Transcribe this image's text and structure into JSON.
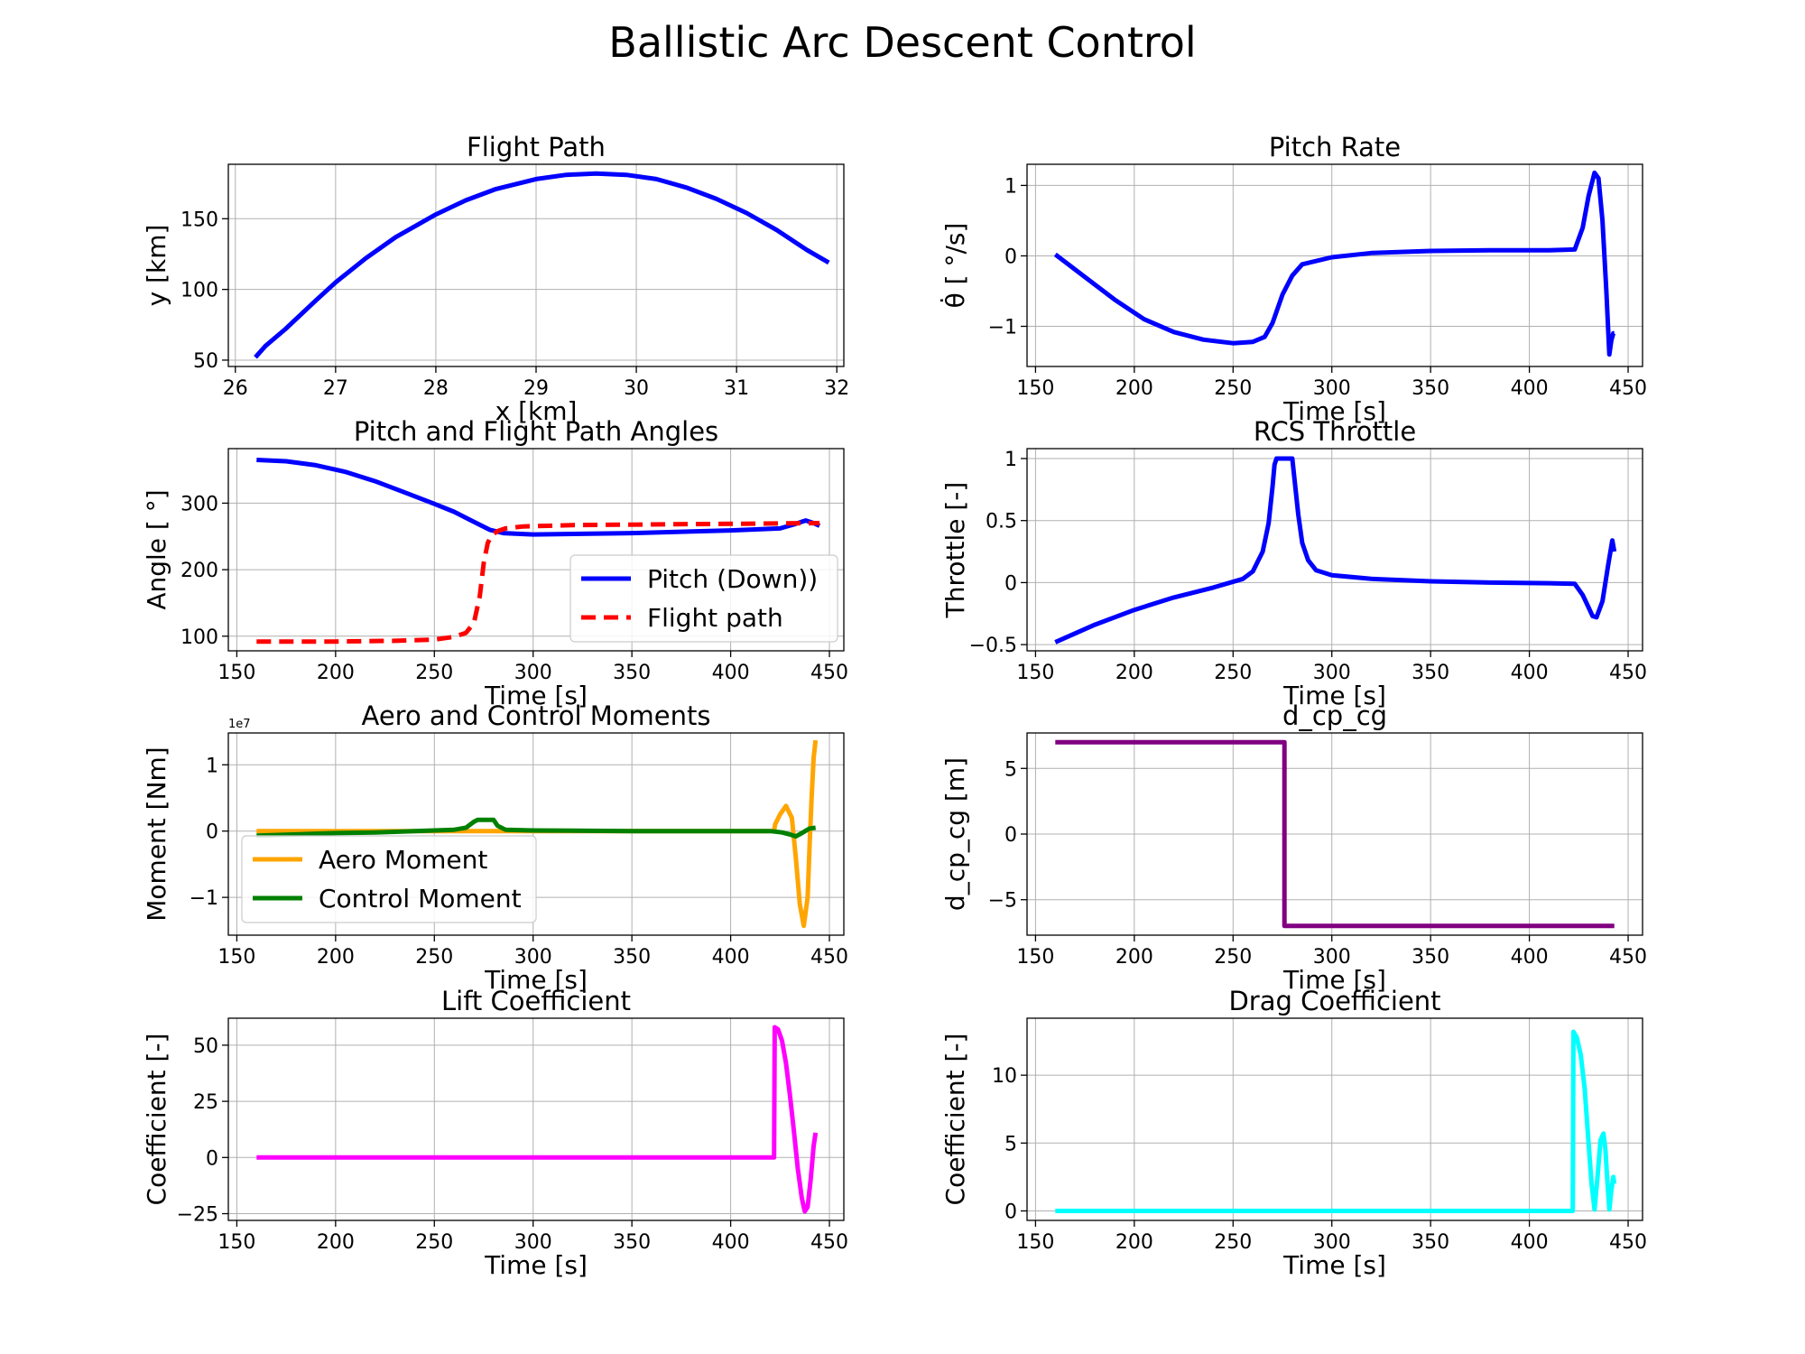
{
  "figure": {
    "title": "Ballistic Arc Descent Control"
  },
  "chart_data": [
    {
      "type": "line",
      "title": "Flight Path",
      "xlabel": "x [km]",
      "ylabel": "y [km]",
      "xlim": [
        25.93,
        32.07
      ],
      "ylim": [
        45.5,
        188.5
      ],
      "xticks": [
        26,
        27,
        28,
        29,
        30,
        31,
        32
      ],
      "yticks": [
        50,
        100,
        150
      ],
      "grid": true,
      "series": [
        {
          "color": "#0000ff",
          "width": 5,
          "dash": "",
          "x": [
            26.2,
            26.3,
            26.5,
            26.8,
            27.0,
            27.3,
            27.6,
            28.0,
            28.3,
            28.6,
            29.0,
            29.3,
            29.6,
            29.9,
            30.2,
            30.5,
            30.8,
            31.1,
            31.4,
            31.7,
            31.92
          ],
          "y": [
            52,
            60,
            72,
            92,
            105,
            122,
            137,
            153,
            163,
            171,
            178,
            181,
            182,
            181,
            178,
            172,
            164,
            154,
            142,
            128,
            119
          ]
        }
      ]
    },
    {
      "type": "line",
      "title": "Pitch Rate",
      "xlabel": "Time [s]",
      "ylabel": "θ̇ [ °/s]",
      "xlim": [
        145.7,
        457.3
      ],
      "ylim": [
        -1.57,
        1.3
      ],
      "xticks": [
        150,
        200,
        250,
        300,
        350,
        400,
        450
      ],
      "yticks": [
        -1,
        0,
        1
      ],
      "grid": true,
      "series": [
        {
          "color": "#0000ff",
          "width": 5,
          "dash": "",
          "x": [
            160,
            175,
            190,
            205,
            220,
            235,
            250,
            260,
            266,
            270,
            275,
            280,
            285,
            300,
            320,
            350,
            380,
            410,
            423,
            427,
            430,
            433,
            435,
            437,
            439,
            440.5,
            441.5,
            442.5,
            443
          ],
          "y": [
            0.02,
            -0.3,
            -0.62,
            -0.9,
            -1.08,
            -1.19,
            -1.24,
            -1.22,
            -1.15,
            -0.95,
            -0.55,
            -0.28,
            -0.12,
            -0.02,
            0.04,
            0.07,
            0.08,
            0.08,
            0.09,
            0.4,
            0.85,
            1.18,
            1.1,
            0.5,
            -0.5,
            -1.4,
            -1.2,
            -1.1,
            -1.1
          ]
        }
      ]
    },
    {
      "type": "line",
      "title": "Pitch and Flight Path Angles",
      "xlabel": "Time [s]",
      "ylabel": "Angle [ °]",
      "xlim": [
        145.7,
        457.3
      ],
      "ylim": [
        78,
        382
      ],
      "xticks": [
        150,
        200,
        250,
        300,
        350,
        400,
        450
      ],
      "yticks": [
        100,
        200,
        300
      ],
      "grid": true,
      "legend": "lower right",
      "series": [
        {
          "name": "Pitch (Down))",
          "color": "#0000ff",
          "width": 5,
          "dash": "",
          "x": [
            160,
            175,
            190,
            205,
            220,
            235,
            250,
            260,
            270,
            278,
            285,
            300,
            350,
            400,
            425,
            432,
            438,
            442,
            445
          ],
          "y": [
            365,
            363,
            357,
            347,
            333,
            316,
            299,
            287,
            272,
            260,
            255,
            253,
            255,
            259,
            262,
            268,
            274,
            270,
            266
          ]
        },
        {
          "name": "Flight path",
          "color": "#ff0000",
          "width": 5,
          "dash": "16 9",
          "x": [
            160,
            200,
            230,
            250,
            260,
            266,
            270,
            273,
            275,
            277,
            279,
            282,
            286,
            295,
            320,
            400,
            445
          ],
          "y": [
            92,
            92,
            93,
            95,
            99,
            105,
            120,
            160,
            210,
            240,
            252,
            258,
            262,
            265,
            267,
            269,
            270
          ]
        }
      ]
    },
    {
      "type": "line",
      "title": "RCS Throttle",
      "xlabel": "Time [s]",
      "ylabel": "Throttle [-]",
      "xlim": [
        145.7,
        457.3
      ],
      "ylim": [
        -0.55,
        1.08
      ],
      "xticks": [
        150,
        200,
        250,
        300,
        350,
        400,
        450
      ],
      "yticks": [
        -0.5,
        0.0,
        0.5,
        1.0
      ],
      "grid": true,
      "series": [
        {
          "color": "#0000ff",
          "width": 5,
          "dash": "",
          "x": [
            160,
            180,
            200,
            220,
            240,
            255,
            260,
            265,
            268,
            270,
            271,
            272,
            280,
            281,
            283,
            285,
            288,
            292,
            300,
            320,
            350,
            380,
            410,
            423,
            427,
            430,
            432,
            434,
            437,
            440,
            442,
            443
          ],
          "y": [
            -0.48,
            -0.34,
            -0.22,
            -0.12,
            -0.04,
            0.03,
            0.09,
            0.25,
            0.48,
            0.78,
            0.95,
            1.0,
            1.0,
            0.85,
            0.55,
            0.32,
            0.18,
            0.1,
            0.06,
            0.03,
            0.01,
            0.0,
            -0.005,
            -0.01,
            -0.1,
            -0.2,
            -0.27,
            -0.28,
            -0.15,
            0.15,
            0.34,
            0.25
          ]
        }
      ]
    },
    {
      "type": "line",
      "title": "Aero and Control Moments",
      "xlabel": "Time [s]",
      "ylabel": "Moment [Nm]",
      "offset_text": "1e7",
      "xlim": [
        145.7,
        457.3
      ],
      "ylim": [
        -1.57,
        1.48
      ],
      "xticks": [
        150,
        200,
        250,
        300,
        350,
        400,
        450
      ],
      "yticks": [
        -1,
        0,
        1
      ],
      "grid": true,
      "legend": "lower left",
      "series": [
        {
          "name": "Aero Moment",
          "color": "#ffa500",
          "width": 5,
          "dash": "",
          "x": [
            160,
            200,
            250,
            300,
            350,
            400,
            422,
            422.5,
            425,
            428,
            431,
            433,
            435,
            437,
            439,
            440,
            441,
            442,
            443
          ],
          "y": [
            0.0,
            0.0,
            0.0,
            0.0,
            0.0,
            0.0,
            0.0,
            0.1,
            0.25,
            0.38,
            0.2,
            -0.4,
            -1.1,
            -1.43,
            -1.0,
            -0.2,
            0.5,
            1.1,
            1.37
          ]
        },
        {
          "name": "Control Moment",
          "color": "#008000",
          "width": 5,
          "dash": "",
          "x": [
            160,
            180,
            200,
            220,
            240,
            260,
            266,
            270,
            272,
            280,
            282,
            286,
            300,
            350,
            400,
            420,
            426,
            430,
            433,
            436,
            440,
            443
          ],
          "y": [
            -0.07,
            -0.05,
            -0.03,
            -0.02,
            0.0,
            0.02,
            0.05,
            0.14,
            0.17,
            0.17,
            0.08,
            0.02,
            0.01,
            0.0,
            0.0,
            0.0,
            -0.02,
            -0.05,
            -0.08,
            -0.03,
            0.04,
            0.05
          ]
        }
      ]
    },
    {
      "type": "line",
      "title": "d_cp_cg",
      "xlabel": "Time [s]",
      "ylabel": "d_cp_cg [m]",
      "xlim": [
        145.7,
        457.3
      ],
      "ylim": [
        -7.7,
        7.7
      ],
      "xticks": [
        150,
        200,
        250,
        300,
        350,
        400,
        450
      ],
      "yticks": [
        -5,
        0,
        5
      ],
      "grid": true,
      "series": [
        {
          "color": "#800080",
          "width": 5,
          "dash": "",
          "x": [
            160,
            276,
            276,
            443
          ],
          "y": [
            7,
            7,
            -7,
            -7
          ]
        }
      ]
    },
    {
      "type": "line",
      "title": "Lift Coefficient",
      "xlabel": "Time [s]",
      "ylabel": "Coefficient [-]",
      "xlim": [
        145.7,
        457.3
      ],
      "ylim": [
        -28,
        62
      ],
      "xticks": [
        150,
        200,
        250,
        300,
        350,
        400,
        450
      ],
      "yticks": [
        -25,
        0,
        25,
        50
      ],
      "grid": true,
      "series": [
        {
          "color": "#ff00ff",
          "width": 5,
          "dash": "",
          "x": [
            160,
            250,
            350,
            422,
            422.3,
            424,
            426,
            428,
            430,
            432,
            434,
            436,
            437.5,
            439,
            440.5,
            442,
            443
          ],
          "y": [
            0,
            0,
            0,
            0,
            58,
            57,
            52,
            42,
            28,
            12,
            -5,
            -18,
            -24,
            -22,
            -10,
            5,
            11
          ]
        }
      ]
    },
    {
      "type": "line",
      "title": "Drag Coefficient",
      "xlabel": "Time [s]",
      "ylabel": "Coefficient [-]",
      "xlim": [
        145.7,
        457.3
      ],
      "ylim": [
        -0.7,
        14.2
      ],
      "xticks": [
        150,
        200,
        250,
        300,
        350,
        400,
        450
      ],
      "yticks": [
        0,
        5,
        10
      ],
      "grid": true,
      "series": [
        {
          "color": "#00ffff",
          "width": 5,
          "dash": "",
          "x": [
            160,
            250,
            350,
            422,
            422.3,
            424,
            426,
            428,
            430,
            431.5,
            433,
            434.5,
            436,
            437.5,
            438.5,
            439.5,
            440.5,
            441.5,
            442.5,
            443
          ],
          "y": [
            0,
            0,
            0,
            0,
            13.2,
            12.8,
            11.5,
            9,
            5,
            2,
            0.1,
            2.5,
            5.2,
            5.7,
            4.5,
            2.2,
            0.1,
            1.5,
            2.5,
            2.0
          ]
        }
      ]
    }
  ]
}
